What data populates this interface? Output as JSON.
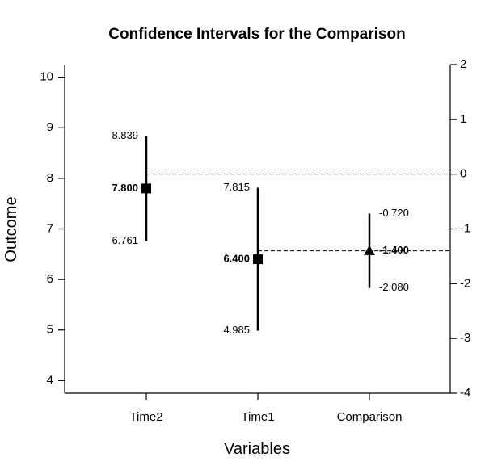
{
  "chart_data": {
    "type": "interval",
    "title": "Confidence Intervals for the Comparison",
    "xlabel": "Variables",
    "ylabel": "Outcome",
    "left_axis": {
      "ylim": [
        3.75,
        10.25
      ],
      "ticks": [
        "4",
        "5",
        "6",
        "7",
        "8",
        "9",
        "10"
      ]
    },
    "right_axis": {
      "ylim": [
        -4,
        2
      ],
      "ticks": [
        "-4",
        "-3",
        "-2",
        "-1",
        "0",
        "1",
        "2"
      ]
    },
    "categories": [
      "Time2",
      "Time1",
      "Comparison"
    ],
    "points": [
      {
        "category": "Time2",
        "axis": "left",
        "marker": "square",
        "estimate": 7.8,
        "lower": 6.761,
        "upper": 8.839,
        "labels": {
          "estimate": "7.800",
          "lower": "6.761",
          "upper": "8.839"
        }
      },
      {
        "category": "Time1",
        "axis": "left",
        "marker": "square",
        "estimate": 6.4,
        "lower": 4.985,
        "upper": 7.815,
        "labels": {
          "estimate": "6.400",
          "lower": "4.985",
          "upper": "7.815"
        }
      },
      {
        "category": "Comparison",
        "axis": "right",
        "marker": "triangle",
        "estimate": -1.4,
        "lower": -2.08,
        "upper": -0.72,
        "labels": {
          "estimate": "-1.400",
          "lower": "-2.080",
          "upper": "-0.720"
        }
      }
    ],
    "reference_lines": [
      {
        "axis": "right",
        "value": 0
      },
      {
        "axis": "right",
        "value": -1.4
      }
    ],
    "grid": false,
    "legend": "none"
  }
}
